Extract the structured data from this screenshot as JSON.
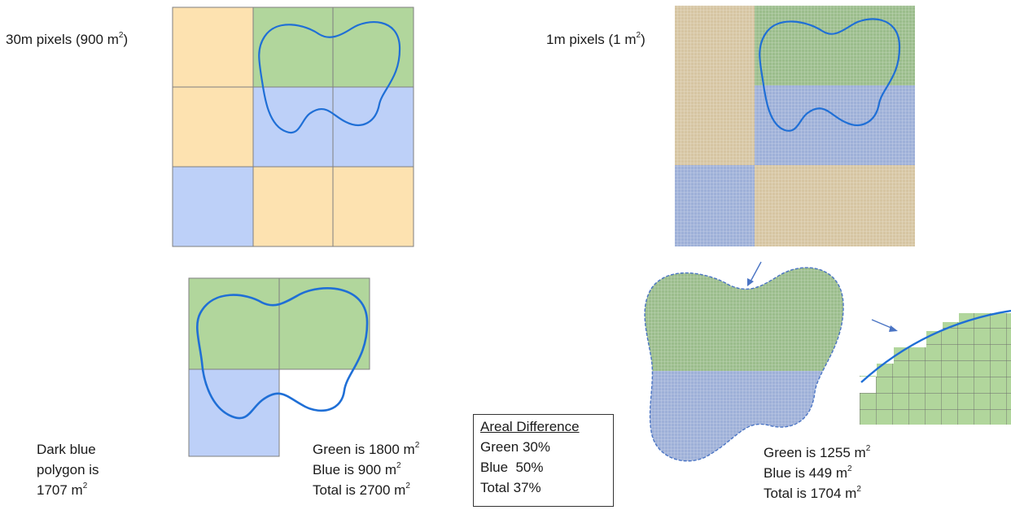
{
  "labels": {
    "coarse_title": "30m pixels (900 m",
    "coarse_sup": "2",
    "coarse_close": ")",
    "fine_title": "1m pixels (1 m",
    "fine_sup": "2",
    "fine_close": ")"
  },
  "polygon_note": {
    "line1": "Dark blue",
    "line2": "polygon is",
    "line3_value": "1707 m",
    "line3_sup": "2"
  },
  "coarse_result": [
    {
      "text": "Green is 1800 m",
      "sup": "2"
    },
    {
      "text": "Blue is 900 m",
      "sup": "2"
    },
    {
      "text": "Total is 2700 m",
      "sup": "2"
    }
  ],
  "areal_difference": {
    "header": "Areal Difference",
    "rows": [
      "Green 30%",
      "Blue  50%",
      "Total 37%"
    ]
  },
  "fine_result": [
    {
      "text": "Green is 1255 m",
      "sup": "2"
    },
    {
      "text": "Blue is 449 m",
      "sup": "2"
    },
    {
      "text": "Total is 1704 m",
      "sup": "2"
    }
  ],
  "colors": {
    "tan": "#fde2b0",
    "green": "#b1d69c",
    "blue": "#bdd0f8",
    "fine_tan": "#d6c5a2",
    "fine_green": "#9bbd8c",
    "fine_blue": "#9eb0d8",
    "grid_line": "#7f7f7f",
    "polygon": "#1f6fd6",
    "arrow": "#4a74c4"
  }
}
